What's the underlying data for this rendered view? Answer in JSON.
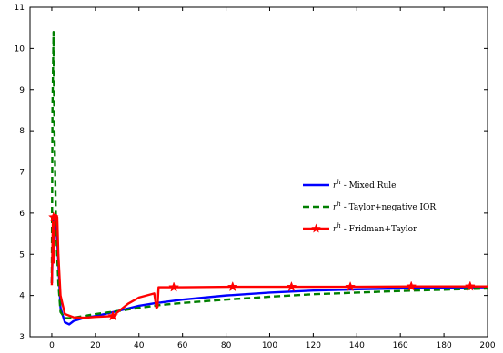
{
  "chart_data": {
    "type": "line",
    "title": "",
    "xlabel": "",
    "ylabel": "",
    "xlim": [
      -10,
      200
    ],
    "ylim": [
      3,
      11
    ],
    "x_ticks": [
      0,
      20,
      40,
      60,
      80,
      100,
      120,
      140,
      160,
      180,
      200
    ],
    "y_ticks": [
      3,
      4,
      5,
      6,
      7,
      8,
      9,
      10,
      11
    ],
    "grid": false,
    "legend_placement": "right",
    "series": [
      {
        "name": "r^h - Mixed Rule",
        "legend_base": "r",
        "legend_sup": "h",
        "legend_text": " - Mixed Rule",
        "color": "#0000ff",
        "dash": "solid",
        "marker": "none",
        "x": [
          0,
          0.5,
          1,
          2,
          3,
          4,
          6,
          8,
          10,
          15,
          20,
          30,
          40,
          48,
          50,
          60,
          80,
          100,
          120,
          140,
          160,
          180,
          200
        ],
        "y": [
          4.3,
          5.2,
          5.9,
          5.85,
          4.8,
          3.7,
          3.35,
          3.3,
          3.38,
          3.46,
          3.5,
          3.62,
          3.75,
          3.82,
          3.83,
          3.9,
          4.0,
          4.07,
          4.12,
          4.15,
          4.17,
          4.19,
          4.2
        ]
      },
      {
        "name": "r^h - Taylor+negative IOR",
        "legend_base": "r",
        "legend_sup": "h",
        "legend_text": " - Taylor+negative IOR",
        "color": "#007f00",
        "dash": "dashed",
        "marker": "none",
        "x": [
          0,
          0.3,
          0.8,
          1.2,
          2,
          3,
          4,
          6,
          8,
          10,
          20,
          30,
          40,
          50,
          60,
          80,
          100,
          120,
          140,
          160,
          180,
          200
        ],
        "y": [
          4.3,
          8.5,
          10.4,
          8.0,
          5.6,
          4.3,
          3.6,
          3.45,
          3.45,
          3.46,
          3.55,
          3.62,
          3.7,
          3.77,
          3.82,
          3.9,
          3.97,
          4.03,
          4.07,
          4.11,
          4.14,
          4.17
        ]
      },
      {
        "name": "r^h - Fridman+Taylor",
        "legend_base": "r",
        "legend_sup": "h",
        "legend_text": " - Fridman+Taylor",
        "color": "#ff0000",
        "dash": "solid",
        "marker": "star",
        "x": [
          0,
          0.5,
          1,
          1.5,
          2,
          2.5,
          3,
          4,
          6,
          10,
          15,
          20,
          28,
          35,
          40,
          47,
          48,
          48.5,
          49,
          50,
          56,
          60,
          83,
          110,
          137,
          165,
          192,
          200
        ],
        "y": [
          4.25,
          5.8,
          4.8,
          5.9,
          5.95,
          5.9,
          5.0,
          4.0,
          3.55,
          3.47,
          3.46,
          3.48,
          3.5,
          3.8,
          3.95,
          4.05,
          3.7,
          3.72,
          4.2,
          4.2,
          4.2,
          4.2,
          4.21,
          4.21,
          4.21,
          4.22,
          4.22,
          4.22
        ],
        "marker_x": [
          0.8,
          28,
          56,
          83,
          110,
          137,
          165,
          192
        ],
        "marker_y": [
          5.9,
          3.5,
          4.2,
          4.21,
          4.21,
          4.21,
          4.22,
          4.22
        ]
      }
    ]
  }
}
